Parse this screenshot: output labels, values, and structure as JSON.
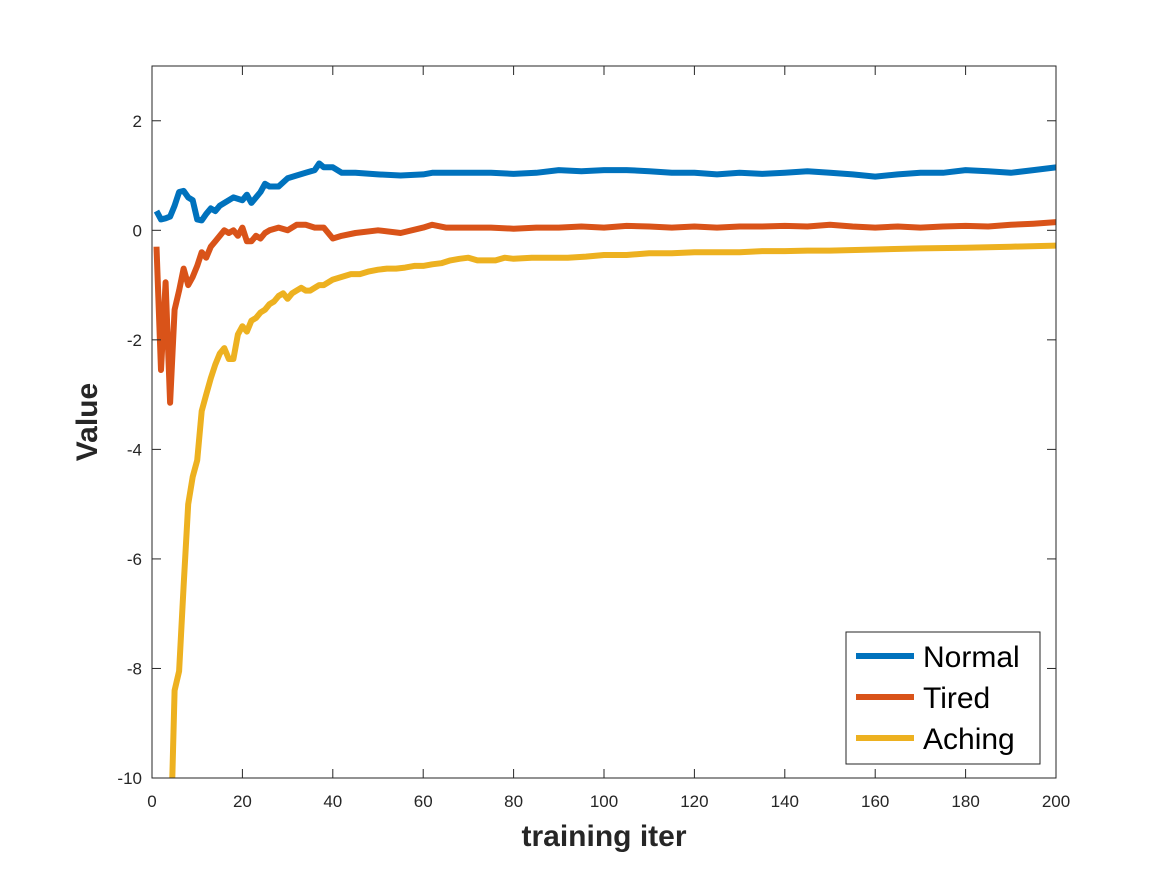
{
  "chart_data": {
    "type": "line",
    "title": "",
    "xlabel": "training iter",
    "ylabel": "Value",
    "xlim": [
      0,
      200
    ],
    "ylim": [
      -10,
      3
    ],
    "xticks": [
      0,
      20,
      40,
      60,
      80,
      100,
      120,
      140,
      160,
      180,
      200
    ],
    "yticks": [
      -10,
      -8,
      -6,
      -4,
      -2,
      0,
      2
    ],
    "grid": false,
    "legend_position": "bottom-right",
    "series": [
      {
        "name": "Normal",
        "color": "#0072BD",
        "x": [
          1,
          2,
          3,
          4,
          5,
          6,
          7,
          8,
          9,
          10,
          11,
          12,
          13,
          14,
          15,
          16,
          18,
          20,
          21,
          22,
          23,
          24,
          25,
          26,
          28,
          30,
          32,
          34,
          36,
          37,
          38,
          40,
          42,
          45,
          50,
          55,
          60,
          62,
          65,
          70,
          75,
          80,
          85,
          90,
          95,
          100,
          105,
          110,
          115,
          120,
          125,
          130,
          135,
          140,
          145,
          150,
          155,
          160,
          165,
          170,
          175,
          180,
          185,
          190,
          195,
          200
        ],
        "y": [
          0.35,
          0.2,
          0.22,
          0.25,
          0.45,
          0.7,
          0.72,
          0.6,
          0.55,
          0.2,
          0.18,
          0.3,
          0.4,
          0.35,
          0.45,
          0.5,
          0.6,
          0.55,
          0.65,
          0.5,
          0.6,
          0.7,
          0.85,
          0.8,
          0.8,
          0.95,
          1.0,
          1.05,
          1.1,
          1.22,
          1.15,
          1.15,
          1.05,
          1.05,
          1.02,
          1.0,
          1.02,
          1.05,
          1.05,
          1.05,
          1.05,
          1.03,
          1.05,
          1.1,
          1.08,
          1.1,
          1.1,
          1.08,
          1.05,
          1.05,
          1.02,
          1.05,
          1.03,
          1.05,
          1.08,
          1.05,
          1.02,
          0.98,
          1.02,
          1.05,
          1.05,
          1.1,
          1.08,
          1.05,
          1.1,
          1.15
        ]
      },
      {
        "name": "Tired",
        "color": "#D95319",
        "x": [
          1,
          2,
          3,
          4,
          5,
          6,
          7,
          8,
          9,
          10,
          11,
          12,
          13,
          14,
          15,
          16,
          17,
          18,
          19,
          20,
          21,
          22,
          23,
          24,
          25,
          26,
          28,
          30,
          32,
          34,
          36,
          38,
          40,
          42,
          45,
          50,
          55,
          60,
          62,
          65,
          70,
          75,
          80,
          85,
          90,
          95,
          100,
          105,
          110,
          115,
          120,
          125,
          130,
          135,
          140,
          145,
          150,
          155,
          160,
          165,
          170,
          175,
          180,
          185,
          190,
          195,
          200
        ],
        "y": [
          -0.3,
          -2.55,
          -0.95,
          -3.15,
          -1.45,
          -1.1,
          -0.7,
          -1.0,
          -0.85,
          -0.65,
          -0.4,
          -0.5,
          -0.3,
          -0.2,
          -0.1,
          0.0,
          -0.05,
          0.0,
          -0.1,
          0.05,
          -0.2,
          -0.2,
          -0.1,
          -0.15,
          -0.05,
          0.0,
          0.05,
          0.0,
          0.1,
          0.1,
          0.05,
          0.05,
          -0.15,
          -0.1,
          -0.05,
          0.0,
          -0.05,
          0.05,
          0.1,
          0.05,
          0.05,
          0.05,
          0.03,
          0.05,
          0.05,
          0.07,
          0.05,
          0.08,
          0.07,
          0.05,
          0.07,
          0.05,
          0.07,
          0.07,
          0.08,
          0.07,
          0.1,
          0.07,
          0.05,
          0.07,
          0.05,
          0.07,
          0.08,
          0.07,
          0.1,
          0.12,
          0.15
        ]
      },
      {
        "name": "Aching",
        "color": "#EDB120",
        "x": [
          4.5,
          5,
          6,
          7,
          8,
          9,
          10,
          11,
          12,
          13,
          14,
          15,
          16,
          17,
          18,
          19,
          20,
          21,
          22,
          23,
          24,
          25,
          26,
          27,
          28,
          29,
          30,
          31,
          32,
          33,
          34,
          35,
          36,
          37,
          38,
          39,
          40,
          42,
          44,
          46,
          48,
          50,
          52,
          54,
          56,
          58,
          60,
          62,
          64,
          66,
          68,
          70,
          72,
          74,
          76,
          78,
          80,
          84,
          88,
          92,
          96,
          100,
          105,
          110,
          115,
          120,
          125,
          130,
          135,
          140,
          145,
          150,
          160,
          170,
          180,
          190,
          200
        ],
        "y": [
          -10,
          -8.4,
          -8.05,
          -6.5,
          -5.0,
          -4.5,
          -4.2,
          -3.3,
          -3.0,
          -2.7,
          -2.45,
          -2.25,
          -2.15,
          -2.35,
          -2.35,
          -1.9,
          -1.75,
          -1.85,
          -1.65,
          -1.6,
          -1.5,
          -1.45,
          -1.35,
          -1.3,
          -1.2,
          -1.15,
          -1.25,
          -1.15,
          -1.1,
          -1.05,
          -1.1,
          -1.1,
          -1.05,
          -1.0,
          -1.0,
          -0.95,
          -0.9,
          -0.85,
          -0.8,
          -0.8,
          -0.75,
          -0.72,
          -0.7,
          -0.7,
          -0.68,
          -0.65,
          -0.65,
          -0.62,
          -0.6,
          -0.55,
          -0.52,
          -0.5,
          -0.55,
          -0.55,
          -0.55,
          -0.5,
          -0.52,
          -0.5,
          -0.5,
          -0.5,
          -0.48,
          -0.45,
          -0.45,
          -0.42,
          -0.42,
          -0.4,
          -0.4,
          -0.4,
          -0.38,
          -0.38,
          -0.37,
          -0.37,
          -0.35,
          -0.33,
          -0.32,
          -0.3,
          -0.28
        ]
      }
    ]
  }
}
